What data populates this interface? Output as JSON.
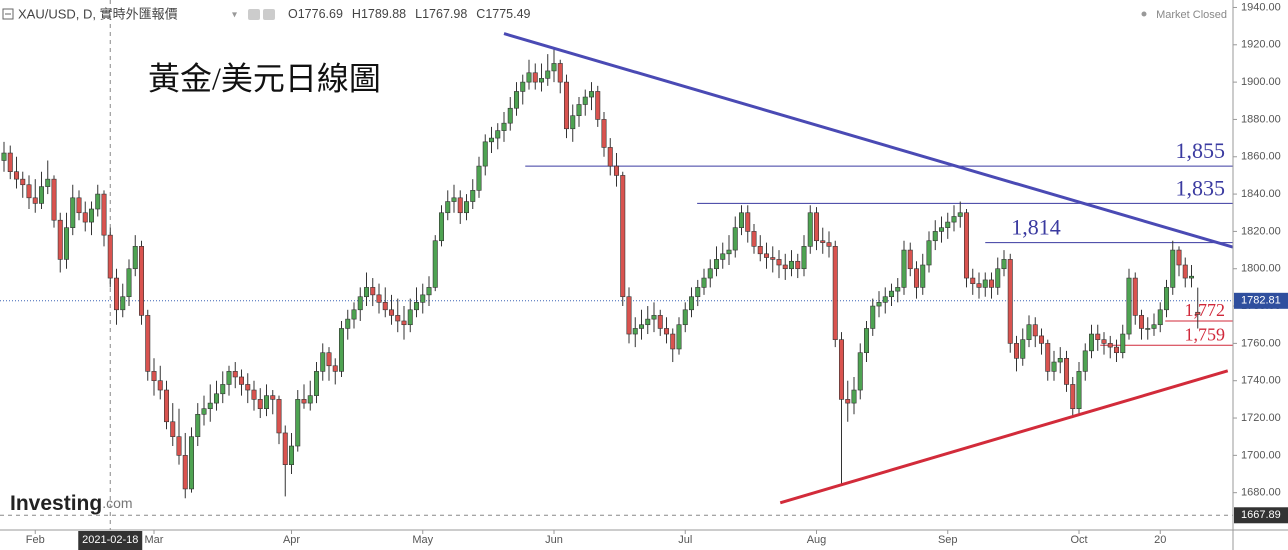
{
  "chart_data": {
    "type": "candlestick",
    "symbol": "XAU/USD, D, 實時外匯報價",
    "ohlc_labels": [
      "O",
      "H",
      "L",
      "C"
    ],
    "status": "Market Closed",
    "title": "黃金/美元日線圖",
    "logo": "Investing",
    "logo_suffix": ".com",
    "up_color": "#4ea352",
    "down_color": "#d9534f",
    "candles": [
      [
        1858,
        1868,
        1852,
        1862
      ],
      [
        1862,
        1866,
        1848,
        1852
      ],
      [
        1852,
        1860,
        1843,
        1848
      ],
      [
        1848,
        1852,
        1838,
        1845
      ],
      [
        1845,
        1850,
        1832,
        1838
      ],
      [
        1838,
        1848,
        1830,
        1835
      ],
      [
        1835,
        1852,
        1832,
        1844
      ],
      [
        1844,
        1858,
        1840,
        1848
      ],
      [
        1848,
        1850,
        1822,
        1826
      ],
      [
        1826,
        1830,
        1798,
        1805
      ],
      [
        1805,
        1830,
        1800,
        1822
      ],
      [
        1822,
        1845,
        1818,
        1838
      ],
      [
        1838,
        1842,
        1826,
        1830
      ],
      [
        1830,
        1836,
        1820,
        1825
      ],
      [
        1825,
        1836,
        1818,
        1832
      ],
      [
        1832,
        1845,
        1828,
        1840
      ],
      [
        1840,
        1842,
        1812,
        1818
      ],
      [
        1818,
        1822,
        1790,
        1795
      ],
      [
        1795,
        1800,
        1770,
        1778
      ],
      [
        1778,
        1792,
        1774,
        1785
      ],
      [
        1785,
        1805,
        1780,
        1800
      ],
      [
        1800,
        1818,
        1796,
        1812
      ],
      [
        1812,
        1815,
        1770,
        1775
      ],
      [
        1775,
        1778,
        1740,
        1745
      ],
      [
        1745,
        1752,
        1732,
        1740
      ],
      [
        1740,
        1748,
        1730,
        1735
      ],
      [
        1735,
        1740,
        1714,
        1718
      ],
      [
        1718,
        1728,
        1705,
        1710
      ],
      [
        1710,
        1725,
        1695,
        1700
      ],
      [
        1700,
        1712,
        1677,
        1682
      ],
      [
        1682,
        1715,
        1680,
        1710
      ],
      [
        1710,
        1728,
        1705,
        1722
      ],
      [
        1722,
        1732,
        1716,
        1725
      ],
      [
        1725,
        1738,
        1718,
        1728
      ],
      [
        1728,
        1740,
        1724,
        1733
      ],
      [
        1733,
        1745,
        1728,
        1738
      ],
      [
        1738,
        1748,
        1732,
        1745
      ],
      [
        1745,
        1750,
        1736,
        1742
      ],
      [
        1742,
        1746,
        1732,
        1738
      ],
      [
        1738,
        1744,
        1728,
        1735
      ],
      [
        1735,
        1740,
        1724,
        1730
      ],
      [
        1730,
        1736,
        1720,
        1725
      ],
      [
        1725,
        1738,
        1721,
        1732
      ],
      [
        1732,
        1735,
        1722,
        1730
      ],
      [
        1730,
        1732,
        1706,
        1712
      ],
      [
        1712,
        1716,
        1678,
        1695
      ],
      [
        1695,
        1712,
        1690,
        1705
      ],
      [
        1705,
        1735,
        1702,
        1730
      ],
      [
        1730,
        1738,
        1725,
        1728
      ],
      [
        1728,
        1740,
        1724,
        1732
      ],
      [
        1732,
        1750,
        1728,
        1745
      ],
      [
        1745,
        1760,
        1740,
        1755
      ],
      [
        1755,
        1758,
        1740,
        1748
      ],
      [
        1748,
        1752,
        1738,
        1745
      ],
      [
        1745,
        1772,
        1742,
        1768
      ],
      [
        1768,
        1778,
        1762,
        1773
      ],
      [
        1773,
        1782,
        1768,
        1778
      ],
      [
        1778,
        1790,
        1772,
        1785
      ],
      [
        1785,
        1798,
        1780,
        1790
      ],
      [
        1790,
        1795,
        1780,
        1786
      ],
      [
        1786,
        1792,
        1776,
        1782
      ],
      [
        1782,
        1790,
        1774,
        1778
      ],
      [
        1778,
        1786,
        1770,
        1775
      ],
      [
        1775,
        1784,
        1766,
        1772
      ],
      [
        1772,
        1780,
        1762,
        1770
      ],
      [
        1770,
        1784,
        1766,
        1778
      ],
      [
        1778,
        1790,
        1774,
        1782
      ],
      [
        1782,
        1792,
        1776,
        1786
      ],
      [
        1786,
        1796,
        1780,
        1790
      ],
      [
        1790,
        1818,
        1788,
        1815
      ],
      [
        1815,
        1834,
        1812,
        1830
      ],
      [
        1830,
        1842,
        1826,
        1836
      ],
      [
        1836,
        1845,
        1830,
        1838
      ],
      [
        1838,
        1842,
        1824,
        1830
      ],
      [
        1830,
        1840,
        1826,
        1836
      ],
      [
        1836,
        1848,
        1832,
        1842
      ],
      [
        1842,
        1860,
        1838,
        1855
      ],
      [
        1855,
        1872,
        1850,
        1868
      ],
      [
        1868,
        1876,
        1862,
        1870
      ],
      [
        1870,
        1878,
        1864,
        1874
      ],
      [
        1874,
        1884,
        1868,
        1878
      ],
      [
        1878,
        1892,
        1874,
        1886
      ],
      [
        1886,
        1900,
        1882,
        1895
      ],
      [
        1895,
        1904,
        1888,
        1900
      ],
      [
        1900,
        1912,
        1896,
        1905
      ],
      [
        1905,
        1910,
        1896,
        1900
      ],
      [
        1900,
        1910,
        1895,
        1902
      ],
      [
        1902,
        1915,
        1898,
        1906
      ],
      [
        1906,
        1918,
        1900,
        1910
      ],
      [
        1910,
        1912,
        1894,
        1900
      ],
      [
        1900,
        1904,
        1870,
        1875
      ],
      [
        1875,
        1888,
        1868,
        1882
      ],
      [
        1882,
        1892,
        1876,
        1888
      ],
      [
        1888,
        1896,
        1882,
        1892
      ],
      [
        1892,
        1900,
        1885,
        1895
      ],
      [
        1895,
        1898,
        1876,
        1880
      ],
      [
        1880,
        1884,
        1860,
        1865
      ],
      [
        1865,
        1870,
        1850,
        1855
      ],
      [
        1855,
        1862,
        1844,
        1850
      ],
      [
        1850,
        1852,
        1780,
        1785
      ],
      [
        1785,
        1790,
        1760,
        1765
      ],
      [
        1765,
        1774,
        1758,
        1768
      ],
      [
        1768,
        1778,
        1762,
        1770
      ],
      [
        1770,
        1780,
        1765,
        1773
      ],
      [
        1773,
        1782,
        1766,
        1775
      ],
      [
        1775,
        1778,
        1764,
        1768
      ],
      [
        1768,
        1774,
        1760,
        1765
      ],
      [
        1765,
        1768,
        1750,
        1757
      ],
      [
        1757,
        1774,
        1754,
        1770
      ],
      [
        1770,
        1782,
        1766,
        1778
      ],
      [
        1778,
        1790,
        1774,
        1785
      ],
      [
        1785,
        1794,
        1780,
        1790
      ],
      [
        1790,
        1800,
        1786,
        1795
      ],
      [
        1795,
        1805,
        1790,
        1800
      ],
      [
        1800,
        1812,
        1796,
        1805
      ],
      [
        1805,
        1814,
        1800,
        1808
      ],
      [
        1808,
        1818,
        1802,
        1810
      ],
      [
        1810,
        1828,
        1806,
        1822
      ],
      [
        1822,
        1834,
        1818,
        1830
      ],
      [
        1830,
        1834,
        1814,
        1820
      ],
      [
        1820,
        1824,
        1808,
        1812
      ],
      [
        1812,
        1818,
        1804,
        1808
      ],
      [
        1808,
        1814,
        1800,
        1806
      ],
      [
        1806,
        1812,
        1798,
        1805
      ],
      [
        1805,
        1810,
        1795,
        1802
      ],
      [
        1802,
        1808,
        1794,
        1800
      ],
      [
        1800,
        1810,
        1796,
        1804
      ],
      [
        1804,
        1808,
        1795,
        1800
      ],
      [
        1800,
        1818,
        1796,
        1812
      ],
      [
        1812,
        1834,
        1808,
        1830
      ],
      [
        1830,
        1833,
        1810,
        1815
      ],
      [
        1815,
        1822,
        1808,
        1814
      ],
      [
        1814,
        1820,
        1806,
        1812
      ],
      [
        1812,
        1815,
        1758,
        1762
      ],
      [
        1762,
        1766,
        1684,
        1730
      ],
      [
        1730,
        1740,
        1718,
        1728
      ],
      [
        1728,
        1742,
        1722,
        1735
      ],
      [
        1735,
        1760,
        1730,
        1755
      ],
      [
        1755,
        1772,
        1750,
        1768
      ],
      [
        1768,
        1784,
        1764,
        1780
      ],
      [
        1780,
        1788,
        1774,
        1782
      ],
      [
        1782,
        1790,
        1776,
        1785
      ],
      [
        1785,
        1792,
        1780,
        1788
      ],
      [
        1788,
        1795,
        1782,
        1790
      ],
      [
        1790,
        1815,
        1786,
        1810
      ],
      [
        1810,
        1814,
        1796,
        1800
      ],
      [
        1800,
        1804,
        1784,
        1790
      ],
      [
        1790,
        1808,
        1786,
        1802
      ],
      [
        1802,
        1820,
        1798,
        1815
      ],
      [
        1815,
        1826,
        1810,
        1820
      ],
      [
        1820,
        1828,
        1814,
        1822
      ],
      [
        1822,
        1830,
        1816,
        1825
      ],
      [
        1825,
        1834,
        1820,
        1828
      ],
      [
        1828,
        1836,
        1822,
        1830
      ],
      [
        1830,
        1832,
        1790,
        1795
      ],
      [
        1795,
        1800,
        1786,
        1792
      ],
      [
        1792,
        1798,
        1784,
        1790
      ],
      [
        1790,
        1798,
        1785,
        1794
      ],
      [
        1794,
        1798,
        1784,
        1790
      ],
      [
        1790,
        1806,
        1786,
        1800
      ],
      [
        1800,
        1810,
        1796,
        1805
      ],
      [
        1805,
        1808,
        1755,
        1760
      ],
      [
        1760,
        1764,
        1745,
        1752
      ],
      [
        1752,
        1768,
        1748,
        1762
      ],
      [
        1762,
        1775,
        1758,
        1770
      ],
      [
        1770,
        1774,
        1758,
        1764
      ],
      [
        1764,
        1768,
        1754,
        1760
      ],
      [
        1760,
        1762,
        1740,
        1745
      ],
      [
        1745,
        1756,
        1740,
        1750
      ],
      [
        1750,
        1758,
        1744,
        1752
      ],
      [
        1752,
        1756,
        1734,
        1738
      ],
      [
        1738,
        1742,
        1720,
        1725
      ],
      [
        1725,
        1750,
        1722,
        1745
      ],
      [
        1745,
        1760,
        1740,
        1756
      ],
      [
        1756,
        1770,
        1752,
        1765
      ],
      [
        1765,
        1770,
        1756,
        1762
      ],
      [
        1762,
        1766,
        1754,
        1760
      ],
      [
        1760,
        1764,
        1752,
        1758
      ],
      [
        1758,
        1762,
        1750,
        1755
      ],
      [
        1755,
        1770,
        1752,
        1765
      ],
      [
        1765,
        1800,
        1762,
        1795
      ],
      [
        1795,
        1798,
        1770,
        1775
      ],
      [
        1775,
        1778,
        1762,
        1768
      ],
      [
        1768,
        1774,
        1762,
        1768
      ],
      [
        1768,
        1776,
        1764,
        1770
      ],
      [
        1770,
        1782,
        1766,
        1778
      ],
      [
        1778,
        1794,
        1774,
        1790
      ],
      [
        1790,
        1815,
        1786,
        1810
      ],
      [
        1810,
        1812,
        1796,
        1802
      ],
      [
        1802,
        1806,
        1790,
        1795
      ],
      [
        1795,
        1802,
        1790,
        1796
      ],
      [
        1776.69,
        1789.88,
        1767.98,
        1775.49
      ]
    ],
    "xlim": [
      -0.64,
      196.64
    ],
    "xticks": [
      {
        "value": 5,
        "label": "Feb"
      },
      {
        "value": 24,
        "label": "Mar"
      },
      {
        "value": 46,
        "label": "Apr"
      },
      {
        "value": 67,
        "label": "May"
      },
      {
        "value": 88,
        "label": "Jun"
      },
      {
        "value": 109,
        "label": "Jul"
      },
      {
        "value": 130,
        "label": "Aug"
      },
      {
        "value": 151,
        "label": "Sep"
      },
      {
        "value": 172,
        "label": "Oct"
      },
      {
        "value": 185,
        "label": "20"
      }
    ],
    "ylim": [
      1660,
      1944
    ],
    "yticks": [
      {
        "value": 1680,
        "label": "1680.00"
      },
      {
        "value": 1700,
        "label": "1700.00"
      },
      {
        "value": 1720,
        "label": "1720.00"
      },
      {
        "value": 1740,
        "label": "1740.00"
      },
      {
        "value": 1760,
        "label": "1760.00"
      },
      {
        "value": 1780,
        "label": "1780.00"
      },
      {
        "value": 1800,
        "label": "1800.00"
      },
      {
        "value": 1820,
        "label": "1820.00"
      },
      {
        "value": 1840,
        "label": "1840.00"
      },
      {
        "value": 1860,
        "label": "1860.00"
      },
      {
        "value": 1880,
        "label": "1880.00"
      },
      {
        "value": 1900,
        "label": "1900.00"
      },
      {
        "value": 1920,
        "label": "1920.00"
      },
      {
        "value": 1940,
        "label": "1940.00"
      }
    ],
    "last_price": 1782.81,
    "crosshair": {
      "index": 17,
      "date": "2021-02-18",
      "price": 1667.89
    },
    "levels": [
      {
        "value": 1855,
        "label": "1,855",
        "from": 83.4,
        "color": "#3a3aa0"
      },
      {
        "value": 1835,
        "label": "1,835",
        "from": 110.9,
        "color": "#3a3aa0"
      },
      {
        "value": 1814,
        "label": "1,814",
        "from": 157,
        "color": "#3a3aa0",
        "label_align": "start"
      },
      {
        "value": 1772,
        "label": "1,772",
        "from": 185.8,
        "color": "#d0283a"
      },
      {
        "value": 1759,
        "label": "1,759",
        "from": 175.4,
        "color": "#d0283a"
      }
    ],
    "trendlines": [
      {
        "color": "#4a4ab4",
        "points": [
          [
            80,
            1926
          ],
          [
            196.6,
            1811.6
          ]
        ]
      },
      {
        "color": "#d22b3a",
        "points": [
          [
            124.2,
            1674.6
          ],
          [
            195.8,
            1745.3
          ]
        ]
      }
    ]
  }
}
